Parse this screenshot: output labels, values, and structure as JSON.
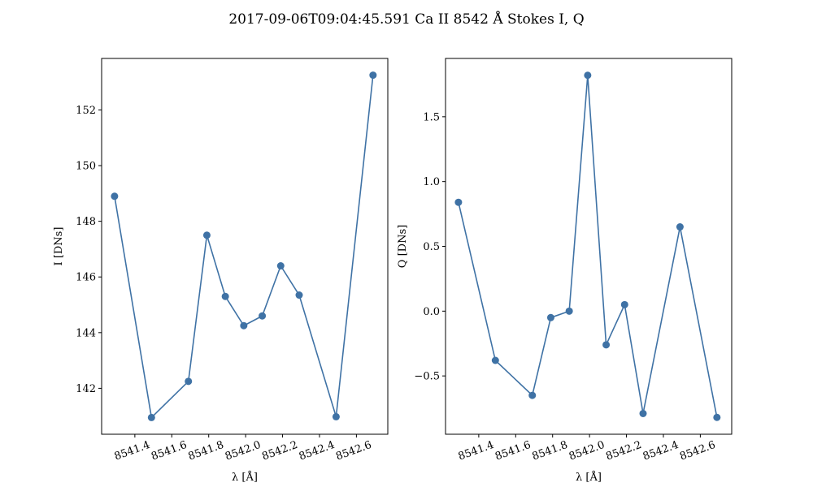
{
  "figure": {
    "title": "2017-09-06T09:04:45.591 Ca II 8542 Å Stokes I, Q"
  },
  "colors": {
    "series": "#3f72a5",
    "axes": "#000000",
    "background": "#ffffff"
  },
  "chart_data": [
    {
      "type": "line",
      "markers": true,
      "xlabel": "λ [Å]",
      "ylabel": "I [DNs]",
      "xlim": [
        8541.22,
        8542.77
      ],
      "ylim": [
        140.35,
        153.85
      ],
      "xticks": [
        8541.4,
        8541.6,
        8541.8,
        8542.0,
        8542.2,
        8542.4,
        8542.6
      ],
      "xtick_labels": [
        "8541.4",
        "8541.6",
        "8541.8",
        "8542.0",
        "8542.2",
        "8542.4",
        "8542.6"
      ],
      "xtick_rotation": 20,
      "yticks": [
        142,
        144,
        146,
        148,
        150,
        152
      ],
      "ytick_labels": [
        "142",
        "144",
        "146",
        "148",
        "150",
        "152"
      ],
      "grid": false,
      "series": [
        {
          "x": [
            8541.29,
            8541.49,
            8541.69,
            8541.79,
            8541.89,
            8541.99,
            8542.09,
            8542.19,
            8542.29,
            8542.49,
            8542.69
          ],
          "values": [
            148.9,
            140.95,
            142.25,
            147.5,
            145.3,
            144.25,
            144.6,
            146.4,
            145.35,
            140.98,
            153.25
          ]
        }
      ]
    },
    {
      "type": "line",
      "markers": true,
      "xlabel": "λ [Å]",
      "ylabel": "Q [DNs]",
      "xlim": [
        8541.22,
        8542.77
      ],
      "ylim": [
        -0.95,
        1.95
      ],
      "xticks": [
        8541.4,
        8541.6,
        8541.8,
        8542.0,
        8542.2,
        8542.4,
        8542.6
      ],
      "xtick_labels": [
        "8541.4",
        "8541.6",
        "8541.8",
        "8542.0",
        "8542.2",
        "8542.4",
        "8542.6"
      ],
      "xtick_rotation": 20,
      "yticks": [
        -0.5,
        0.0,
        0.5,
        1.0,
        1.5
      ],
      "ytick_labels": [
        "−0.5",
        "0.0",
        "0.5",
        "1.0",
        "1.5"
      ],
      "grid": false,
      "series": [
        {
          "x": [
            8541.29,
            8541.49,
            8541.69,
            8541.79,
            8541.89,
            8541.99,
            8542.09,
            8542.19,
            8542.29,
            8542.49,
            8542.69
          ],
          "values": [
            0.84,
            -0.38,
            -0.65,
            -0.05,
            0.0,
            1.82,
            -0.26,
            0.05,
            -0.79,
            0.65,
            -0.82
          ]
        }
      ]
    }
  ]
}
